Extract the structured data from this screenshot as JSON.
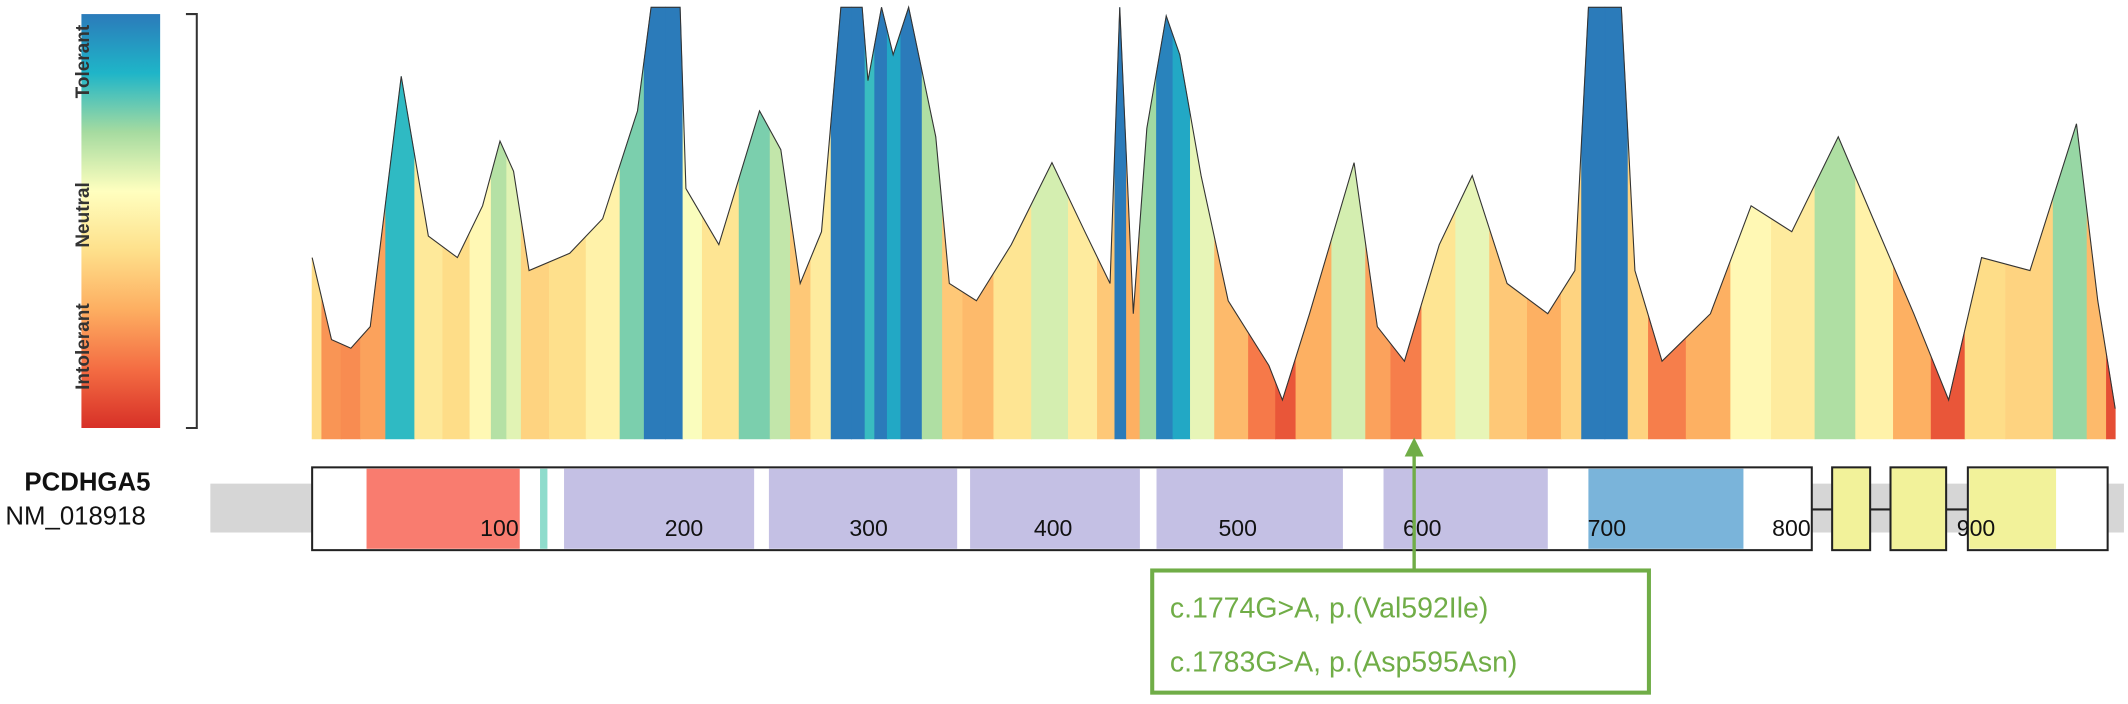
{
  "chart_data": {
    "type": "area",
    "colorbar_labels": [
      "Intolerant",
      "Neutral",
      "Tolerant"
    ],
    "colormap": [
      "#d73027",
      "#f46d43",
      "#fdae61",
      "#fee08b",
      "#ffffbf",
      "#a6dba0",
      "#1fb5c8",
      "#2b7bba"
    ],
    "xlim": [
      0,
      932
    ],
    "ylim": [
      0,
      1
    ],
    "x": [
      0,
      10,
      20,
      30,
      46,
      60,
      75,
      88,
      97,
      104,
      112,
      133,
      150,
      168,
      175,
      190,
      193,
      210,
      231,
      242,
      252,
      263,
      273,
      284,
      287,
      294,
      300,
      308,
      322,
      329,
      343,
      361,
      382,
      399,
      412,
      417,
      424,
      431,
      441,
      448,
      459,
      473,
      494,
      501,
      515,
      538,
      550,
      564,
      582,
      599,
      617,
      638,
      652,
      659,
      676,
      683,
      697,
      722,
      743,
      764,
      788,
      806,
      827,
      845,
      862,
      887,
      911,
      922,
      931
    ],
    "values": [
      0.42,
      0.23,
      0.21,
      0.26,
      0.84,
      0.47,
      0.42,
      0.54,
      0.69,
      0.62,
      0.39,
      0.43,
      0.51,
      0.76,
      1,
      1,
      0.58,
      0.45,
      0.76,
      0.67,
      0.36,
      0.48,
      1,
      1,
      0.83,
      1,
      0.89,
      1,
      0.7,
      0.36,
      0.32,
      0.45,
      0.64,
      0.48,
      0.36,
      1,
      0.29,
      0.72,
      0.98,
      0.89,
      0.61,
      0.32,
      0.17,
      0.09,
      0.29,
      0.64,
      0.26,
      0.18,
      0.45,
      0.61,
      0.36,
      0.29,
      0.39,
      1,
      1,
      0.39,
      0.18,
      0.29,
      0.54,
      0.48,
      0.7,
      0.51,
      0.29,
      0.09,
      0.42,
      0.39,
      0.73,
      0.32,
      0.07
    ],
    "track": {
      "gene": "PCDHGA5",
      "transcript": "NM_018918",
      "xticks": [
        100,
        200,
        300,
        400,
        500,
        600,
        700,
        800,
        900
      ],
      "domains": [
        {
          "start": 28,
          "end": 111,
          "color": "#f97c6f"
        },
        {
          "start": 122,
          "end": 126,
          "color": "#8fdccc"
        },
        {
          "start": 135,
          "end": 238,
          "color": "#c4c0e4"
        },
        {
          "start": 246,
          "end": 348,
          "color": "#c4c0e4"
        },
        {
          "start": 355,
          "end": 447,
          "color": "#c4c0e4"
        },
        {
          "start": 456,
          "end": 557,
          "color": "#c4c0e4"
        },
        {
          "start": 579,
          "end": 668,
          "color": "#c4c0e4"
        },
        {
          "start": 690,
          "end": 774,
          "color": "#7ab4da"
        }
      ]
    },
    "annotation": [
      "c.1774G>A, p.(Val592Ile)",
      "c.1783G>A, p.(Asp595Asn)"
    ]
  }
}
